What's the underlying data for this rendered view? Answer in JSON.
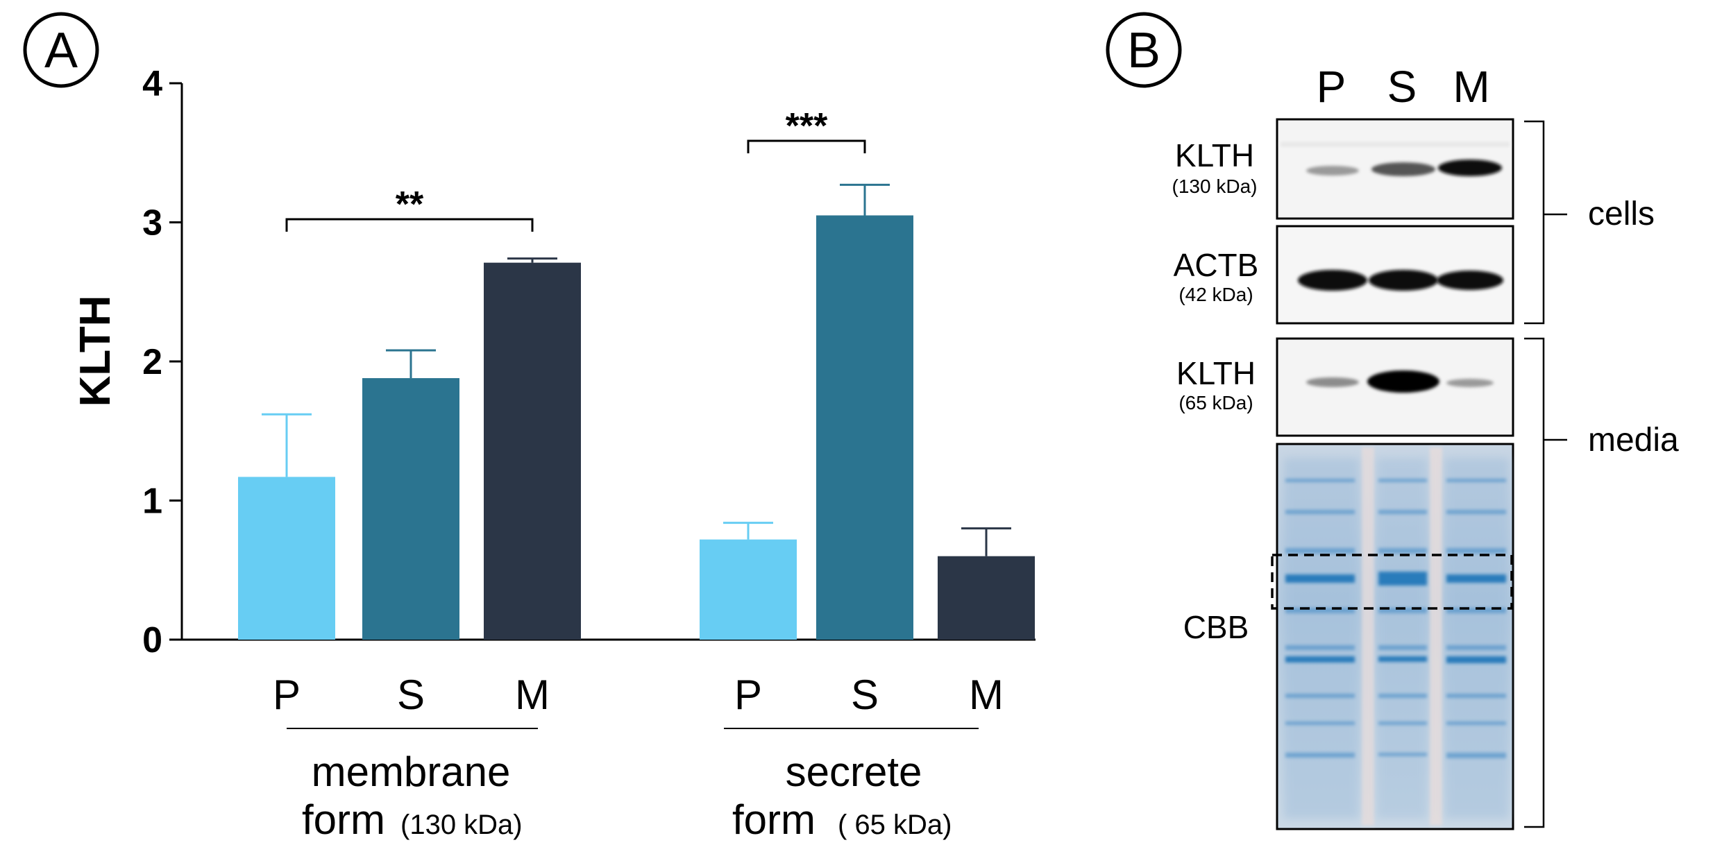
{
  "panelA": {
    "label": "A",
    "ylabel": "KLTH",
    "yticks": [
      "0",
      "1",
      "2",
      "3",
      "4"
    ],
    "groups": [
      {
        "line1": "membrane",
        "line2": "form",
        "line2_suffix": "(130 kDa)"
      },
      {
        "line1": "secrete",
        "line2": "form",
        "line2_suffix": "( 65 kDa)"
      }
    ]
  },
  "chart_data": {
    "type": "bar",
    "title": "",
    "xlabel": "",
    "ylabel": "KLTH",
    "ylim": [
      0,
      4
    ],
    "categories": [
      "P",
      "S",
      "M",
      "P",
      "S",
      "M"
    ],
    "groups": [
      "membrane form (130 kDa)",
      "secrete form ( 65 kDa)"
    ],
    "values": [
      1.17,
      1.88,
      2.71,
      0.72,
      3.05,
      0.6
    ],
    "errors": [
      0.45,
      0.2,
      0.03,
      0.12,
      0.22,
      0.2
    ],
    "colors": [
      "#67cdf3",
      "#2b7490",
      "#2b3647",
      "#67cdf3",
      "#2b7490",
      "#2b3647"
    ],
    "significance": [
      {
        "from": 0,
        "to": 2,
        "label": "**"
      },
      {
        "from": 3,
        "to": 4,
        "label": "***"
      }
    ]
  },
  "panelB": {
    "label": "B",
    "lanes": [
      "P",
      "S",
      "M"
    ],
    "blots": [
      {
        "name": "KLTH",
        "sub": "(130 kDa)"
      },
      {
        "name": "ACTB",
        "sub": "(42 kDa)"
      },
      {
        "name": "KLTH",
        "sub": "(65 kDa)"
      },
      {
        "name": "CBB",
        "sub": ""
      }
    ],
    "brackets": [
      "cells",
      "media"
    ]
  }
}
